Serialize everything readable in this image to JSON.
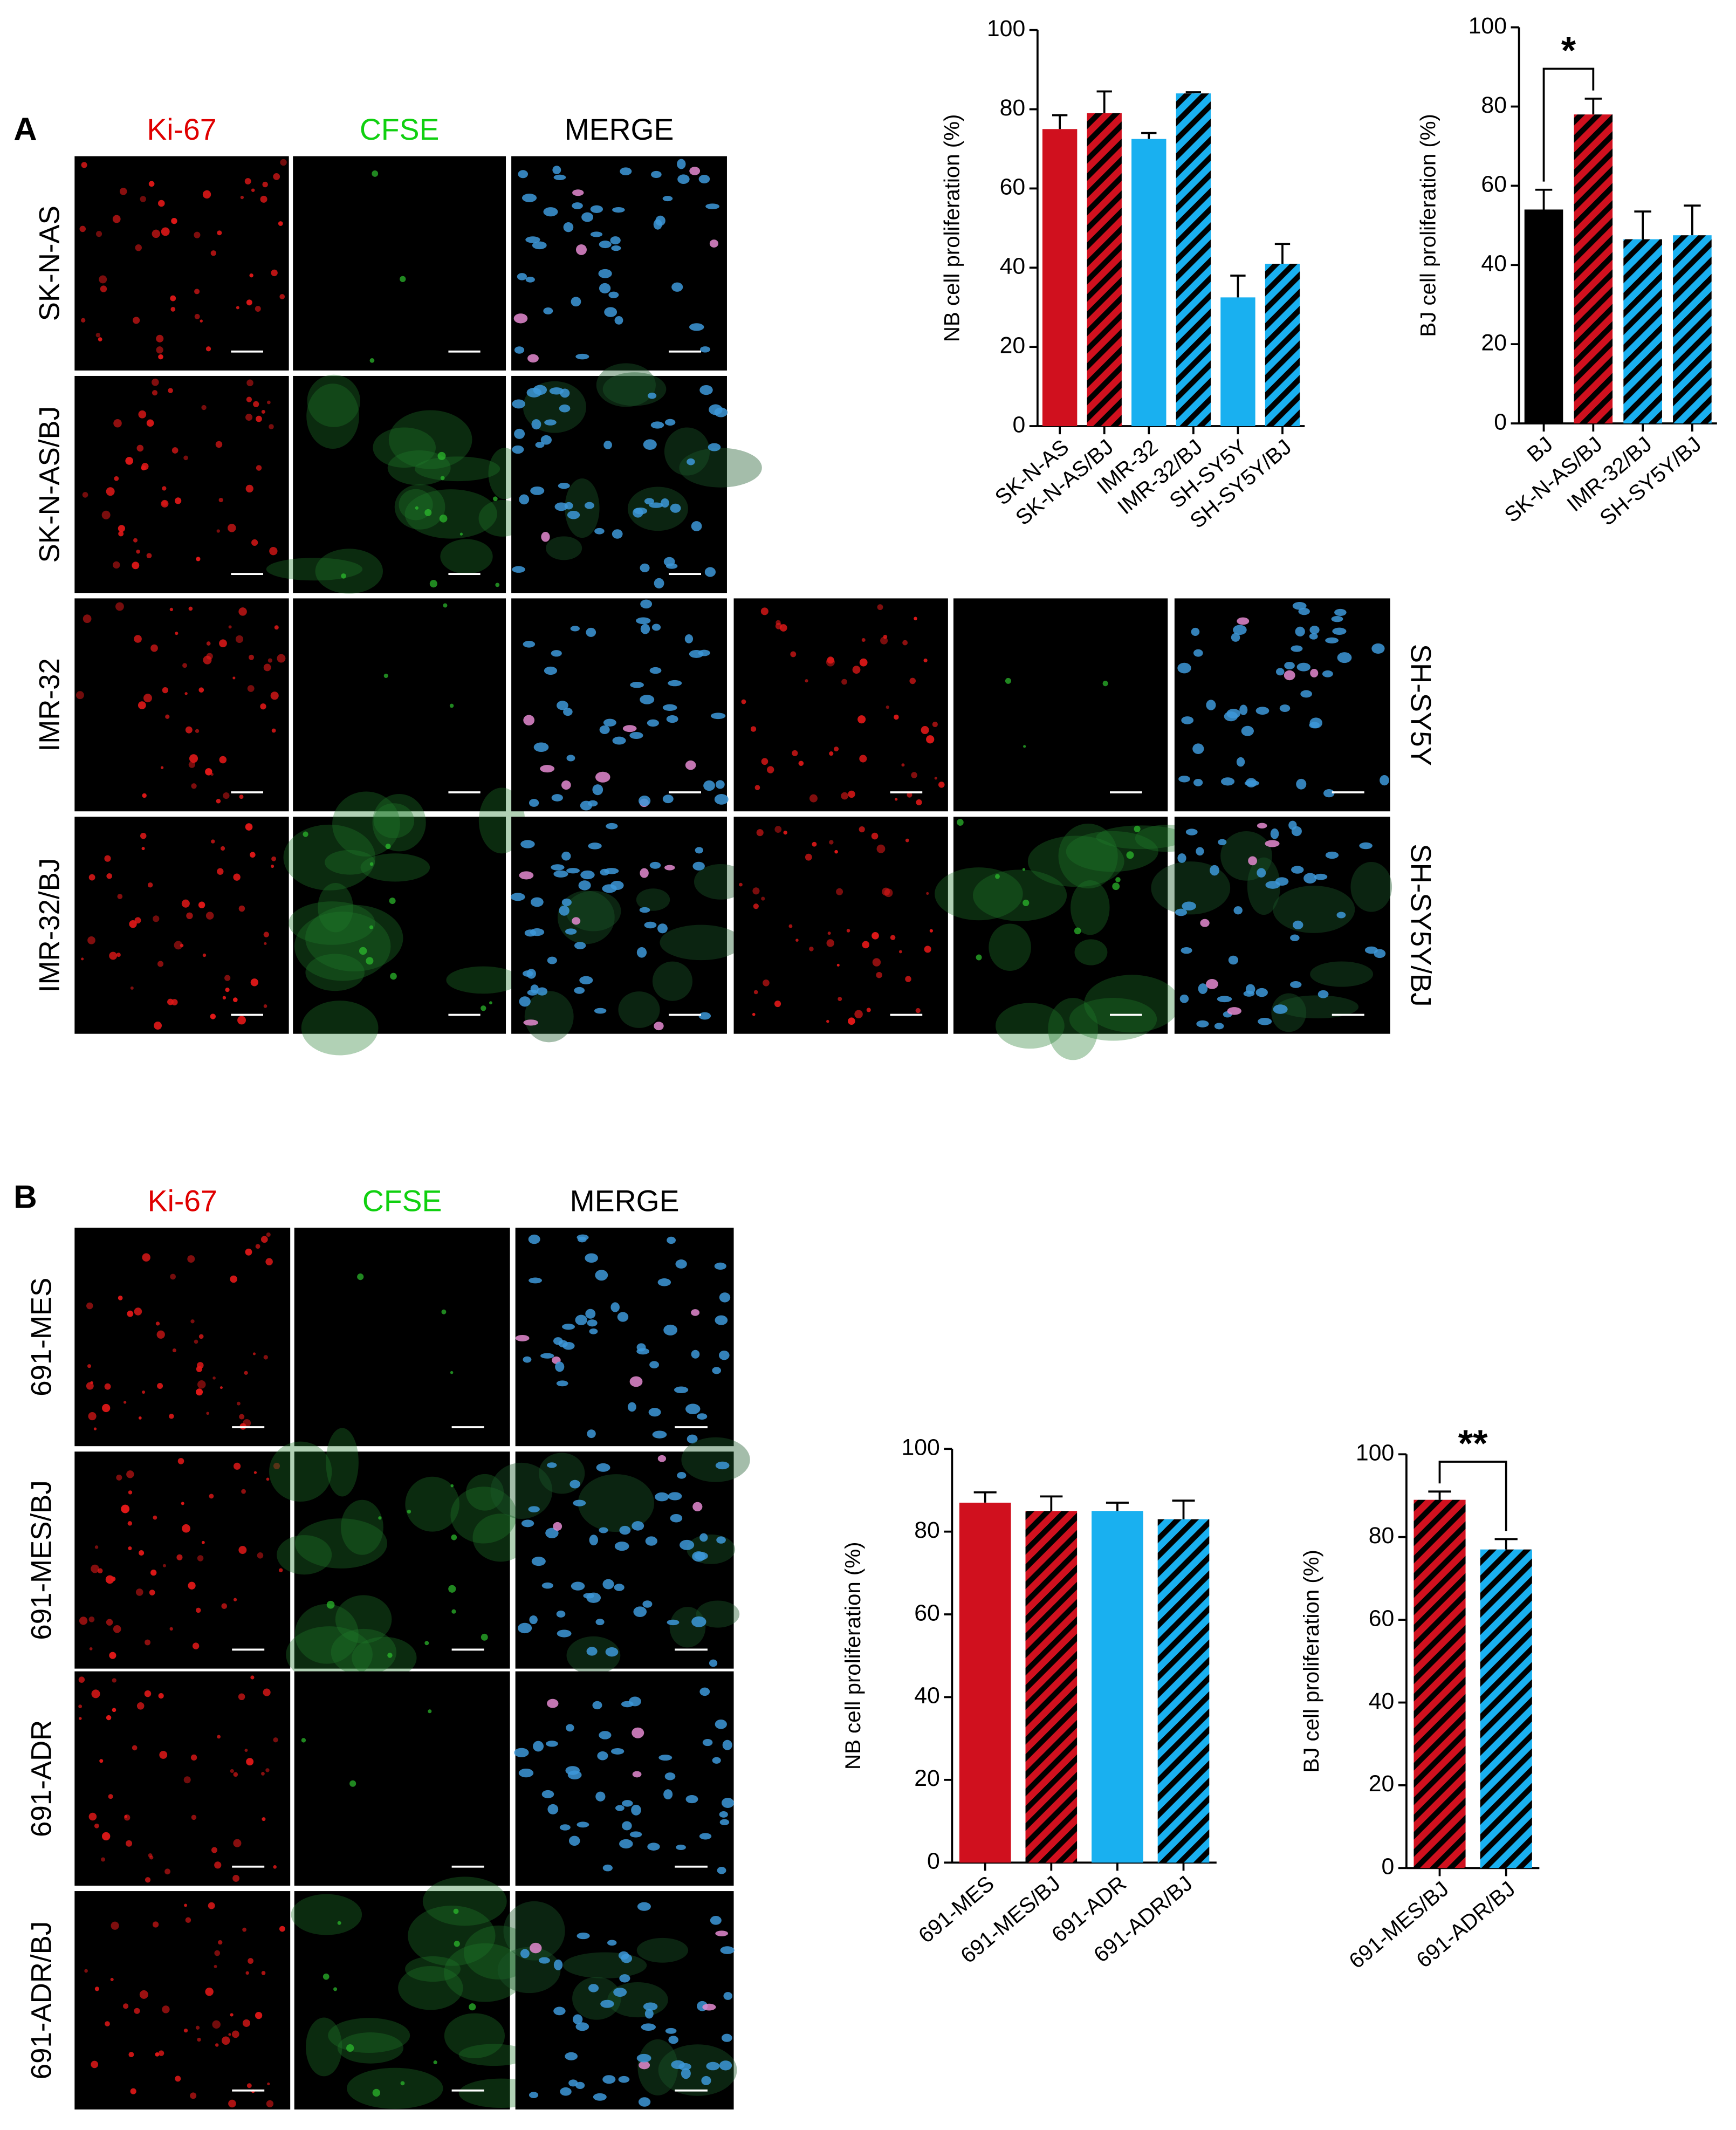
{
  "figure": {
    "panel_a": {
      "label": "A",
      "columns": [
        "Ki-67",
        "CFSE",
        "MERGE"
      ],
      "rows": [
        "SK-N-AS",
        "SK-N-AS/BJ",
        "IMR-32",
        "IMR-32/BJ"
      ],
      "side_rows": [
        "SH-SY5Y",
        "SH-SY5Y/BJ"
      ]
    },
    "panel_b": {
      "label": "B",
      "columns": [
        "Ki-67",
        "CFSE",
        "MERGE"
      ],
      "rows": [
        "691-MES",
        "691-MES/BJ",
        "691-ADR",
        "691-ADR/BJ"
      ]
    }
  },
  "chart_data": [
    {
      "type": "bar",
      "y_label": "NB cell proliferation (%)",
      "categories": [
        "SK-N-AS",
        "SK-N-AS/BJ",
        "IMR-32",
        "IMR-32/BJ",
        "SH-SY5Y",
        "SH-SY5Y/BJ"
      ],
      "values": [
        75,
        79,
        72.5,
        84,
        32.5,
        41
      ],
      "errors": [
        3.5,
        5.5,
        1.5,
        0.3,
        5.5,
        5
      ],
      "colors": [
        "#d0101e",
        "#d0101e",
        "#19b0f0",
        "#19b0f0",
        "#19b0f0",
        "#19b0f0"
      ],
      "hatched": [
        false,
        true,
        false,
        true,
        false,
        true
      ],
      "hatch_color": "#000000",
      "ylim": [
        0,
        100
      ],
      "yticks": [
        0,
        20,
        40,
        60,
        80,
        100
      ]
    },
    {
      "type": "bar",
      "y_label": "BJ cell proliferation (%)",
      "categories": [
        "BJ",
        "SK-N-AS/BJ",
        "IMR-32/BJ",
        "SH-SY5Y/BJ"
      ],
      "values": [
        54,
        78,
        46.5,
        47.5
      ],
      "errors": [
        5,
        4,
        7,
        7.5
      ],
      "colors": [
        "#000000",
        "#d0101e",
        "#19b0f0",
        "#19b0f0"
      ],
      "hatched": [
        false,
        true,
        true,
        true
      ],
      "hatch_color": "#000000",
      "ylim": [
        0,
        100
      ],
      "yticks": [
        0,
        20,
        40,
        60,
        80,
        100
      ],
      "significance": "*"
    },
    {
      "type": "bar",
      "y_label": "NB cell proliferation (%)",
      "categories": [
        "691-MES",
        "691-MES/BJ",
        "691-ADR",
        "691-ADR/BJ"
      ],
      "values": [
        87,
        85,
        85,
        83
      ],
      "errors": [
        2.5,
        3.5,
        2,
        4.5
      ],
      "colors": [
        "#d0101e",
        "#d0101e",
        "#19b0f0",
        "#19b0f0"
      ],
      "hatched": [
        false,
        true,
        false,
        true
      ],
      "hatch_color": "#000000",
      "ylim": [
        0,
        100
      ],
      "yticks": [
        0,
        20,
        40,
        60,
        80,
        100
      ]
    },
    {
      "type": "bar",
      "y_label": "BJ cell proliferation (%)",
      "categories": [
        "691-MES/BJ",
        "691-ADR/BJ"
      ],
      "values": [
        89,
        77
      ],
      "errors": [
        2,
        2.5
      ],
      "colors": [
        "#d0101e",
        "#19b0f0"
      ],
      "hatched": [
        true,
        true
      ],
      "hatch_color": "#000000",
      "ylim": [
        0,
        100
      ],
      "yticks": [
        0,
        20,
        40,
        60,
        80,
        100
      ],
      "significance": "**"
    }
  ]
}
